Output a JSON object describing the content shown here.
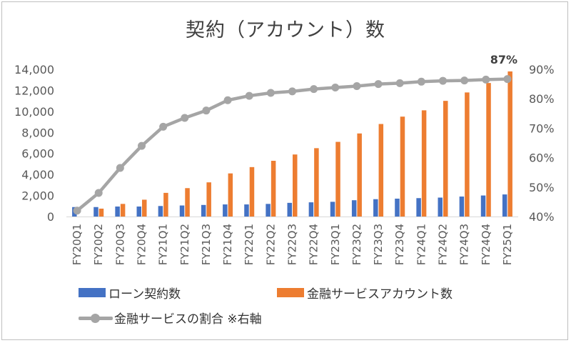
{
  "chart_data": {
    "type": "bar+line",
    "title": "契約（アカウント）数",
    "categories": [
      "FY20Q1",
      "FY20Q2",
      "FY20Q3",
      "FY20Q4",
      "FY21Q1",
      "FY21Q2",
      "FY21Q3",
      "FY21Q4",
      "FY22Q1",
      "FY22Q2",
      "FY22Q3",
      "FY22Q4",
      "FY23Q1",
      "FY23Q2",
      "FY23Q3",
      "FY23Q4",
      "FY24Q1",
      "FY24Q2",
      "FY24Q3",
      "FY24Q4",
      "FY25Q1"
    ],
    "series": [
      {
        "name": "ローン契約数",
        "type": "bar",
        "axis": "left",
        "color": "#4472c4",
        "values": [
          900,
          900,
          950,
          950,
          1000,
          1050,
          1100,
          1150,
          1150,
          1200,
          1300,
          1350,
          1400,
          1550,
          1650,
          1700,
          1750,
          1800,
          1900,
          2000,
          2100
        ]
      },
      {
        "name": "金融サービスアカウント数",
        "type": "bar",
        "axis": "left",
        "color": "#ed7d31",
        "values": [
          0,
          750,
          1200,
          1600,
          2250,
          2700,
          3250,
          4100,
          4700,
          5300,
          5900,
          6500,
          7100,
          7900,
          8800,
          9500,
          10100,
          11000,
          11800,
          12700,
          13800
        ]
      },
      {
        "name": "金融サービスの割合 ※右軸",
        "type": "line",
        "axis": "right",
        "color": "#a5a5a5",
        "values": [
          42,
          48,
          56.5,
          64,
          70.5,
          73.5,
          76,
          79.5,
          81,
          82,
          82.5,
          83.3,
          83.8,
          84.3,
          85,
          85.3,
          85.8,
          86.1,
          86.2,
          86.5,
          86.7
        ]
      }
    ],
    "left_axis": {
      "min": 0,
      "max": 14000,
      "step": 2000,
      "ticks": [
        "0",
        "2,000",
        "4,000",
        "6,000",
        "8,000",
        "10,000",
        "12,000",
        "14,000"
      ]
    },
    "right_axis": {
      "min": 40,
      "max": 90,
      "step": 10,
      "ticks": [
        "40%",
        "50%",
        "60%",
        "70%",
        "80%",
        "90%"
      ]
    },
    "annotation": {
      "index": 20,
      "text": "87%"
    },
    "grid": false
  }
}
